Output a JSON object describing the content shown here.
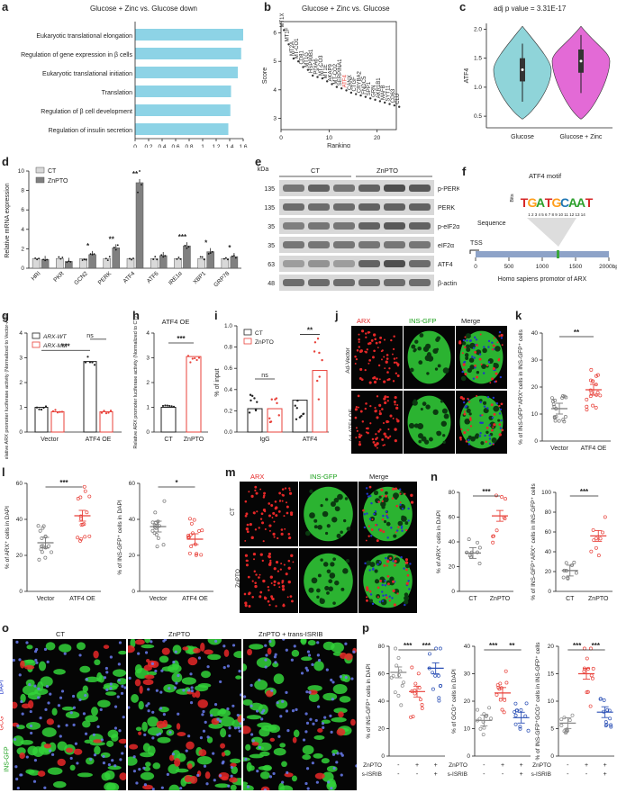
{
  "panels": {
    "a": {
      "label": "a",
      "title": "Glucose + Zinc vs. Glucose down",
      "xlabel": "Absolute Normalized Enrichment Score (NES)",
      "terms": [
        "Eukaryotic translational elongation",
        "Regulation of gene expression in β cells",
        "Eukaryotic translational initiation",
        "Translation",
        "Regulation of β cell development",
        "Regulation of insulin secretion"
      ],
      "ticks": [
        "0",
        "0.2",
        "0.4",
        "0.6",
        "0.8",
        "1",
        "1.2",
        "1.4",
        "1.6"
      ]
    },
    "b": {
      "label": "b",
      "title": "Glucose + Zinc vs. Glucose",
      "xlabel": "Ranking",
      "ylabel": "Score",
      "genes": [
        "MT1X",
        "MT1F",
        "MT2A",
        "MT-CO1",
        "CD81",
        "MT1G",
        "HSP90B1",
        "PDIA6",
        "MT-CO3",
        "MT1E",
        "AKAP9",
        "MT-CO2",
        "SERPINA1",
        "ATF4",
        "CANX",
        "CTGF",
        "CRYBA2",
        "FNDC5",
        "SPP1",
        "GRN",
        "AKR1B1",
        "MAFB",
        "SYT11",
        "CD63",
        "CLU"
      ],
      "xticks": [
        "0",
        "10",
        "20"
      ],
      "yticks": [
        "3",
        "4",
        "5",
        "6"
      ]
    },
    "c": {
      "label": "c",
      "title": "adj p value = 3.31E-17",
      "ylabel": "ATF4",
      "groups": [
        "Glucose",
        "Glucose + Zinc"
      ],
      "yticks": [
        "0.5",
        "1.0",
        "1.5",
        "2.0"
      ]
    },
    "d": {
      "label": "d",
      "ylabel": "Relative mRNA expression",
      "legend": [
        "CT",
        "ZnPTO"
      ],
      "genes": [
        "HRI",
        "PKR",
        "GCN2",
        "PERK",
        "ATF4",
        "ATF6",
        "IRE1α",
        "XBP1",
        "GRP78"
      ],
      "ct": [
        1,
        1,
        1,
        1,
        1,
        1,
        1,
        1,
        1
      ],
      "znpto": [
        0.9,
        0.7,
        1.4,
        2.1,
        8.8,
        1.3,
        2.3,
        1.7,
        1.2
      ],
      "sig": [
        "",
        "",
        "*",
        "**",
        "**",
        "",
        "***",
        "*",
        "*"
      ],
      "yticks": [
        "0",
        "2",
        "4",
        "6",
        "8",
        "10"
      ]
    },
    "e": {
      "label": "e",
      "kda_label": "kDa",
      "groups": [
        "CT",
        "ZnPTO"
      ],
      "kda": [
        "135",
        "135",
        "35",
        "35",
        "63",
        "48"
      ],
      "bands": [
        "p-PERK",
        "PERK",
        "p-eIF2α",
        "eIF2α",
        "ATF4",
        "β-actin"
      ]
    },
    "f": {
      "label": "f",
      "motif_title": "ATF4 motif",
      "bits": "Bits",
      "motif_positions": "1 2 3 4 5 6 7 8 9 10 11 12 13 14",
      "sequence": "Sequence",
      "tss": "TSS",
      "ticks": [
        "0",
        "500",
        "1000",
        "1500",
        "2000bp"
      ],
      "caption": "Homo sapiens promotor of ARX"
    },
    "g": {
      "label": "g",
      "ylabel": "Relative ARX promoter luciferase activity (Normalized to Vector-ARX-WT)",
      "legend": [
        "ARX-WT",
        "ARX-Mut"
      ],
      "groups": [
        "Vector",
        "ATF4 OE"
      ],
      "values": [
        1.0,
        0.82,
        2.85,
        0.82
      ],
      "sig": [
        "***",
        "ns"
      ],
      "yticks": [
        "0",
        "1",
        "2",
        "3",
        "4"
      ]
    },
    "h": {
      "label": "h",
      "title": "ATF4 OE",
      "ylabel": "Relative ARX promoter luciferase activity (Normalized to CT)",
      "groups": [
        "CT",
        "ZnPTO"
      ],
      "values": [
        1.0,
        3.05
      ],
      "sig": "***",
      "yticks": [
        "0",
        "1",
        "2",
        "3",
        "4"
      ]
    },
    "i": {
      "label": "i",
      "ylabel": "% of input",
      "legend": [
        "CT",
        "ZnPTO"
      ],
      "groups": [
        "IgG",
        "ATF4"
      ],
      "values": [
        0.22,
        0.22,
        0.3,
        0.58
      ],
      "sig": [
        "ns",
        "**"
      ],
      "yticks": [
        "0.0",
        "0.2",
        "0.4",
        "0.6",
        "0.8",
        "1.0"
      ]
    },
    "j": {
      "label": "j",
      "headers": [
        "ARX",
        "INS-GFP",
        "Merge"
      ],
      "rows": [
        "Ad-Vector",
        "Ad-ATF4 OE"
      ]
    },
    "k": {
      "label": "k",
      "ylabel": "% of INS-GFP⁺ARX⁺cells in INS-GFP⁺ cells",
      "groups": [
        "Vector",
        "ATF4 OE"
      ],
      "means": [
        12,
        19
      ],
      "sig": "**",
      "yticks": [
        "0",
        "10",
        "20",
        "30",
        "40"
      ]
    },
    "l": {
      "label": "l",
      "left": {
        "ylabel": "% of ARX⁺ cells in DAPI",
        "groups": [
          "Vector",
          "ATF4 OE"
        ],
        "means": [
          27,
          42
        ],
        "sig": "***",
        "yticks": [
          "0",
          "20",
          "40",
          "60"
        ]
      },
      "right": {
        "ylabel": "% of INS-GFP⁺ cells in DAPI",
        "groups": [
          "Vector",
          "ATF4 OE"
        ],
        "means": [
          36,
          29
        ],
        "sig": "*",
        "yticks": [
          "0",
          "20",
          "40",
          "60"
        ]
      }
    },
    "m": {
      "label": "m",
      "headers": [
        "ARX",
        "INS-GFP",
        "Merge"
      ],
      "rows": [
        "CT",
        "ZnPTO"
      ]
    },
    "n": {
      "label": "n",
      "left": {
        "ylabel": "% of ARX⁺ cells in DAPI",
        "groups": [
          "CT",
          "ZnPTO"
        ],
        "means": [
          31,
          61
        ],
        "sig": "***",
        "yticks": [
          "0",
          "20",
          "40",
          "60",
          "80"
        ]
      },
      "right": {
        "ylabel": "% of INS-GFP⁺ARX⁺ cells in INS-GFP⁺ cells",
        "groups": [
          "CT",
          "ZnPTO"
        ],
        "means": [
          21,
          56
        ],
        "sig": "***",
        "yticks": [
          "0",
          "20",
          "40",
          "60",
          "80",
          "100"
        ]
      }
    },
    "o": {
      "label": "o",
      "headers": [
        "CT",
        "ZnPTO",
        "ZnPTO + trans-ISRIB"
      ],
      "side": [
        "INS-GFP",
        "GCG",
        "DAPI"
      ]
    },
    "p": {
      "label": "p",
      "row_labels": [
        "ZnPTO",
        "trans-ISRIB"
      ],
      "row_signs": [
        [
          "-",
          "+",
          "+"
        ],
        [
          "-",
          "-",
          "+"
        ]
      ],
      "charts": [
        {
          "ylabel": "% of INS-GFP⁺ cells in DAPI",
          "means": [
            61,
            47,
            64
          ],
          "sig": [
            "***",
            "***"
          ],
          "yticks": [
            "0",
            "20",
            "40",
            "60",
            "80"
          ]
        },
        {
          "ylabel": "% of GCG⁺ cells in DAPI",
          "means": [
            13,
            23,
            14
          ],
          "sig": [
            "***",
            "**"
          ],
          "yticks": [
            "0",
            "10",
            "20",
            "30",
            "40"
          ]
        },
        {
          "ylabel": "% of INS-GFP⁺GCG⁺ cells in INS-GFP⁺ cells",
          "means": [
            6,
            15,
            8
          ],
          "sig": [
            "***",
            "***"
          ],
          "yticks": [
            "0",
            "5",
            "10",
            "15",
            "20"
          ]
        }
      ]
    }
  },
  "colors": {
    "bar_a": "#8dd3e6",
    "ct_gray": "#d9d9d9",
    "znpto_gray": "#808080",
    "red": "#e8413a",
    "blue": "#2a4fb5",
    "violin1": "#8fd4d9",
    "violin2": "#e36ad6",
    "micro_green": "#32d23a",
    "micro_red": "#e62828",
    "micro_blue": "#2036c8"
  }
}
